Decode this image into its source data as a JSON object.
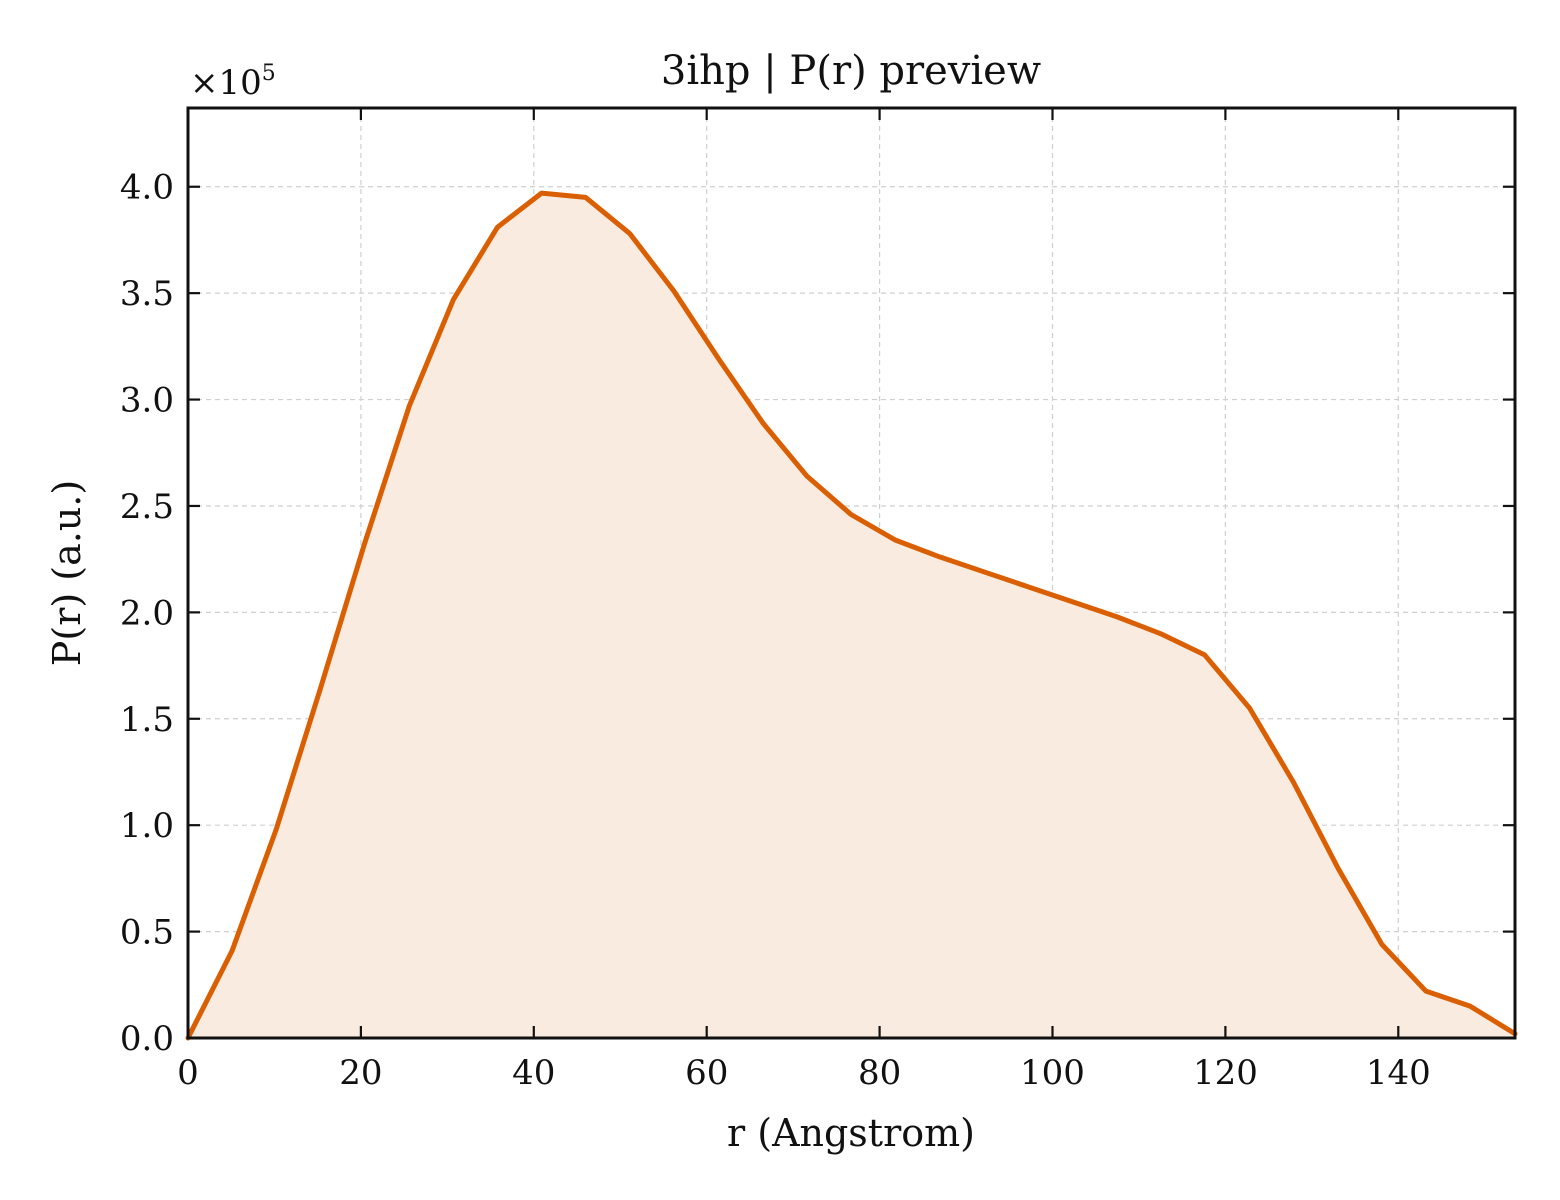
{
  "chart_data": {
    "type": "area",
    "title": "3ihp | P(r) preview",
    "xlabel": "r (Angstrom)",
    "ylabel": "P(r) (a.u.)",
    "y_offset_label": "×10",
    "y_offset_exponent": "5",
    "xlim": [
      0,
      153.5
    ],
    "ylim": [
      0,
      437000
    ],
    "x_ticks": [
      0,
      20,
      40,
      60,
      80,
      100,
      120,
      140
    ],
    "x_tick_labels": [
      "0",
      "20",
      "40",
      "60",
      "80",
      "100",
      "120",
      "140"
    ],
    "y_ticks": [
      0,
      50000,
      100000,
      150000,
      200000,
      250000,
      300000,
      350000,
      400000
    ],
    "y_tick_labels": [
      "0.0",
      "0.5",
      "1.0",
      "1.5",
      "2.0",
      "2.5",
      "3.0",
      "3.5",
      "4.0"
    ],
    "grid": true,
    "colors": {
      "line": "#d95f02",
      "fill": "#f9ebdf",
      "frame": "#111111",
      "grid": "#cfcfcf"
    },
    "series": [
      {
        "x": [
          0,
          5.1,
          10.2,
          15.3,
          20.4,
          25.6,
          30.7,
          35.8,
          40.9,
          46.0,
          51.1,
          56.2,
          61.4,
          66.5,
          71.6,
          76.7,
          81.8,
          87.0,
          92.1,
          97.2,
          102.3,
          107.4,
          112.5,
          117.6,
          122.8,
          127.9,
          133.0,
          138.1,
          143.2,
          148.3,
          153.5
        ],
        "y": [
          0,
          41000,
          98000,
          164000,
          232000,
          297000,
          347000,
          381000,
          397000,
          395000,
          378000,
          351000,
          319000,
          289000,
          264000,
          246000,
          234000,
          226000,
          219000,
          212000,
          205000,
          198000,
          190000,
          180000,
          155000,
          120000,
          80000,
          44000,
          22000,
          15000,
          2000
        ]
      }
    ]
  }
}
